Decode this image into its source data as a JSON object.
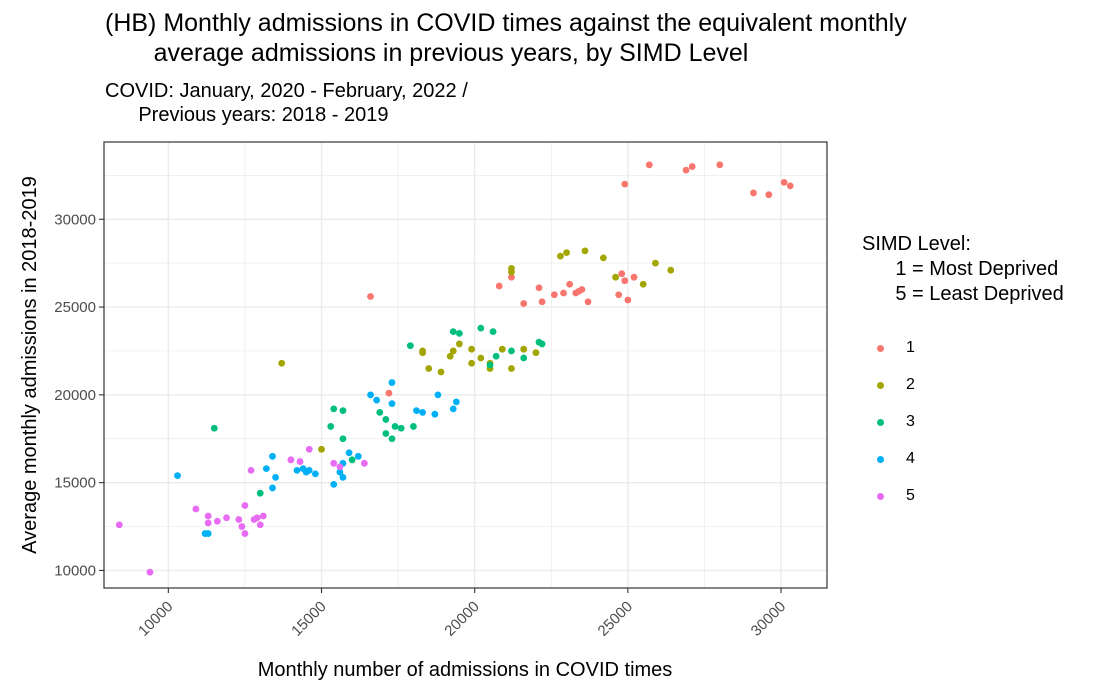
{
  "title": "(HB) Monthly admissions in COVID times against the equivalent monthly\n       average admissions in previous years, by SIMD Level",
  "subtitle": "COVID: January, 2020 - February, 2022 /\n      Previous years: 2018 - 2019",
  "xlabel": "Monthly number of admissions in COVID times",
  "ylabel": "Average monthly admissions in 2018-2019",
  "legend": {
    "title": "SIMD Level:\n      1 = Most Deprived\n      5 = Least Deprived",
    "items": [
      {
        "label": "1",
        "color": "#F8766D"
      },
      {
        "label": "2",
        "color": "#A3A500"
      },
      {
        "label": "3",
        "color": "#00BF7D"
      },
      {
        "label": "4",
        "color": "#00B0F6"
      },
      {
        "label": "5",
        "color": "#E76BF3"
      }
    ]
  },
  "chart_data": {
    "type": "scatter",
    "title": "(HB) Monthly admissions in COVID times against the equivalent monthly average admissions in previous years, by SIMD Level",
    "subtitle": "COVID: January, 2020 - February, 2022 / Previous years: 2018 - 2019",
    "xlabel": "Monthly number of admissions in COVID times",
    "ylabel": "Average monthly admissions in 2018-2019",
    "xlim": [
      7900,
      31500
    ],
    "ylim": [
      9000,
      34400
    ],
    "xticks": [
      10000,
      15000,
      20000,
      25000,
      30000
    ],
    "yticks": [
      10000,
      15000,
      20000,
      25000,
      30000
    ],
    "xtick_labels": [
      "10000",
      "15000",
      "20000",
      "25000",
      "30000"
    ],
    "ytick_labels": [
      "10000",
      "15000",
      "20000",
      "25000",
      "30000"
    ],
    "grid": true,
    "legend_position": "right",
    "series": [
      {
        "name": "1",
        "color": "#F8766D",
        "points": [
          [
            25700,
            33100
          ],
          [
            26900,
            32800
          ],
          [
            27100,
            33000
          ],
          [
            28000,
            33100
          ],
          [
            24900,
            32000
          ],
          [
            29100,
            31500
          ],
          [
            29600,
            31400
          ],
          [
            30100,
            32100
          ],
          [
            30300,
            31900
          ],
          [
            16600,
            25600
          ],
          [
            17200,
            20100
          ],
          [
            20800,
            26200
          ],
          [
            21200,
            26700
          ],
          [
            21600,
            25200
          ],
          [
            22100,
            26100
          ],
          [
            22200,
            25300
          ],
          [
            22600,
            25700
          ],
          [
            22900,
            25800
          ],
          [
            23100,
            26300
          ],
          [
            23300,
            25800
          ],
          [
            23400,
            25900
          ],
          [
            23500,
            26000
          ],
          [
            23700,
            25300
          ],
          [
            24700,
            25700
          ],
          [
            24800,
            26900
          ],
          [
            24900,
            26500
          ],
          [
            25000,
            25400
          ],
          [
            25200,
            26700
          ]
        ]
      },
      {
        "name": "2",
        "color": "#A3A500",
        "points": [
          [
            13700,
            21800
          ],
          [
            15000,
            16900
          ],
          [
            18300,
            22500
          ],
          [
            18300,
            22400
          ],
          [
            18500,
            21500
          ],
          [
            18900,
            21300
          ],
          [
            19200,
            22200
          ],
          [
            19300,
            22500
          ],
          [
            19500,
            22900
          ],
          [
            19900,
            22600
          ],
          [
            19900,
            21800
          ],
          [
            20200,
            22100
          ],
          [
            20500,
            21800
          ],
          [
            20500,
            21500
          ],
          [
            20900,
            22600
          ],
          [
            21200,
            21500
          ],
          [
            21200,
            27000
          ],
          [
            21200,
            27200
          ],
          [
            21600,
            22600
          ],
          [
            22000,
            22400
          ],
          [
            22800,
            27900
          ],
          [
            23000,
            28100
          ],
          [
            23600,
            28200
          ],
          [
            24200,
            27800
          ],
          [
            24600,
            26700
          ],
          [
            25500,
            26300
          ],
          [
            25900,
            27500
          ],
          [
            26400,
            27100
          ]
        ]
      },
      {
        "name": "3",
        "color": "#00BF7D",
        "points": [
          [
            11500,
            18100
          ],
          [
            13000,
            14400
          ],
          [
            15300,
            18200
          ],
          [
            15400,
            19200
          ],
          [
            15700,
            19100
          ],
          [
            15700,
            17500
          ],
          [
            16000,
            16300
          ],
          [
            16900,
            19000
          ],
          [
            17100,
            18600
          ],
          [
            17100,
            17800
          ],
          [
            17300,
            17500
          ],
          [
            17400,
            18200
          ],
          [
            17600,
            18100
          ],
          [
            17900,
            22800
          ],
          [
            18000,
            18200
          ],
          [
            19300,
            23600
          ],
          [
            19500,
            23500
          ],
          [
            20200,
            23800
          ],
          [
            20500,
            21700
          ],
          [
            20600,
            23600
          ],
          [
            20700,
            22200
          ],
          [
            21200,
            22500
          ],
          [
            21600,
            22100
          ],
          [
            22100,
            23000
          ],
          [
            22200,
            22900
          ]
        ]
      },
      {
        "name": "4",
        "color": "#00B0F6",
        "points": [
          [
            10300,
            15400
          ],
          [
            11200,
            12100
          ],
          [
            11300,
            12100
          ],
          [
            13200,
            15800
          ],
          [
            13400,
            16500
          ],
          [
            13400,
            14700
          ],
          [
            13500,
            15300
          ],
          [
            14200,
            15700
          ],
          [
            14400,
            15800
          ],
          [
            14500,
            15600
          ],
          [
            14600,
            15700
          ],
          [
            14800,
            15500
          ],
          [
            15400,
            14900
          ],
          [
            15600,
            15600
          ],
          [
            15700,
            16100
          ],
          [
            15700,
            15300
          ],
          [
            15900,
            16700
          ],
          [
            16200,
            16500
          ],
          [
            16600,
            20000
          ],
          [
            16800,
            19700
          ],
          [
            17300,
            20700
          ],
          [
            17300,
            19500
          ],
          [
            18100,
            19100
          ],
          [
            18300,
            19000
          ],
          [
            18700,
            18900
          ],
          [
            18800,
            20000
          ],
          [
            19300,
            19200
          ],
          [
            19400,
            19600
          ]
        ]
      },
      {
        "name": "5",
        "color": "#E76BF3",
        "points": [
          [
            8400,
            12600
          ],
          [
            9400,
            9900
          ],
          [
            10900,
            13500
          ],
          [
            11300,
            13100
          ],
          [
            11300,
            12700
          ],
          [
            11600,
            12800
          ],
          [
            11900,
            13000
          ],
          [
            12300,
            12900
          ],
          [
            12400,
            12500
          ],
          [
            12500,
            13700
          ],
          [
            12500,
            12100
          ],
          [
            12700,
            15700
          ],
          [
            12800,
            12900
          ],
          [
            12900,
            13000
          ],
          [
            13000,
            12600
          ],
          [
            13100,
            13100
          ],
          [
            14000,
            16300
          ],
          [
            14300,
            16200
          ],
          [
            14600,
            16900
          ],
          [
            15400,
            16100
          ],
          [
            15600,
            15900
          ],
          [
            16400,
            16100
          ]
        ]
      }
    ]
  }
}
